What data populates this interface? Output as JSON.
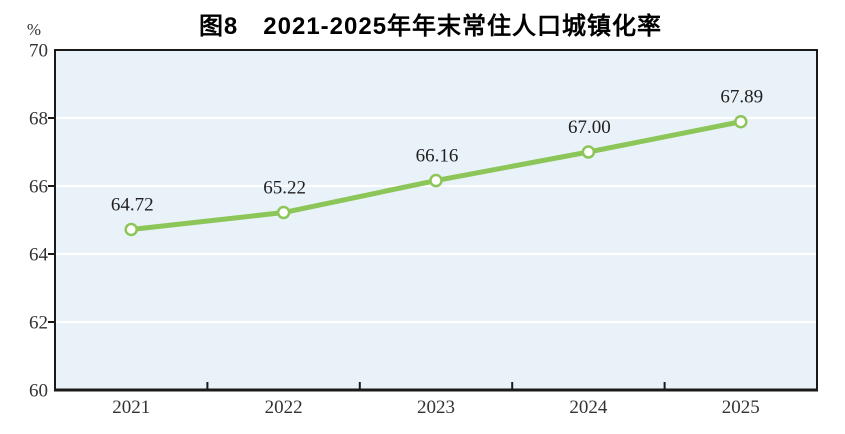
{
  "chart_data": {
    "type": "line",
    "title": "图8　2021-2025年年末常住人口城镇化率",
    "y_unit_label": "%",
    "xlabel": "",
    "ylabel": "%",
    "categories": [
      "2021",
      "2022",
      "2023",
      "2024",
      "2025"
    ],
    "series": [
      {
        "name": "年末常住人口城镇化率",
        "values": [
          64.72,
          65.22,
          66.16,
          67.0,
          67.89
        ],
        "value_labels": [
          "64.72",
          "65.22",
          "66.16",
          "67.00",
          "67.89"
        ]
      }
    ],
    "ylim": [
      60,
      70
    ],
    "ytick_interval": 2,
    "yticks": [
      70,
      68,
      66,
      64,
      62,
      60
    ],
    "grid": "horizontal",
    "legend_position": "none",
    "colors": {
      "line": "#8cc558",
      "marker_fill": "#ffffff",
      "plot_background": "#e9f2f8",
      "gridline": "#ffffff",
      "axis": "#1a1a1a",
      "tick_text": "#333333",
      "value_text": "#1f1f1f",
      "title_text": "#000000"
    }
  }
}
